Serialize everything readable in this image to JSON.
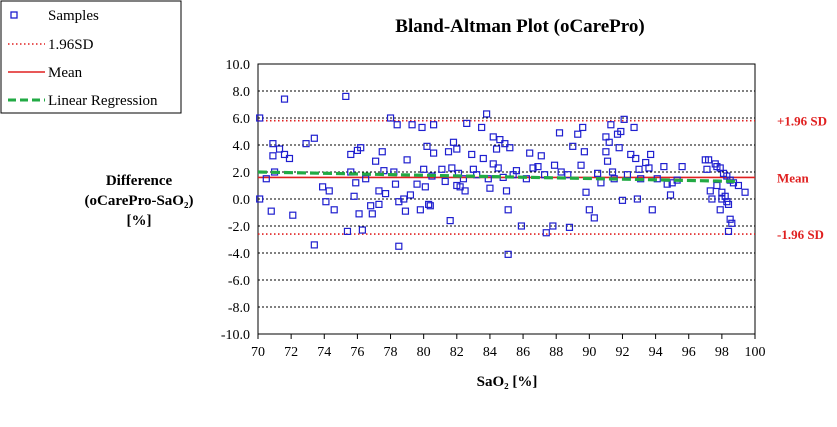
{
  "chart_data": {
    "type": "scatter",
    "title": "Bland-Altman Plot (oCarePro)",
    "xlabel": "SaO₂ [%]",
    "ylabel": [
      "Difference",
      "(oCarePro-SaO₂)",
      "[%]"
    ],
    "xlim": [
      70,
      100
    ],
    "ylim": [
      -10,
      10
    ],
    "x_ticks": [
      70,
      72,
      74,
      76,
      78,
      80,
      82,
      84,
      86,
      88,
      90,
      92,
      94,
      96,
      98,
      100
    ],
    "y_ticks": [
      10,
      8,
      6,
      4,
      2,
      0,
      -2,
      -4,
      -6,
      -8,
      -10
    ],
    "y_tick_labels": [
      "10.0",
      "8.0",
      "6.0",
      "4.0",
      "2.0",
      "0.0",
      "-2.0",
      "-4.0",
      "-6.0",
      "-8.0",
      "-10.0"
    ],
    "grid": true,
    "legend": {
      "position": "top-left",
      "entries": [
        "Samples",
        "1.96SD",
        "Mean",
        "Linear Regression"
      ]
    },
    "reference_lines": [
      {
        "name": "upper-limit",
        "label": "+1.96 SD",
        "y": 5.8,
        "style": "dotted",
        "color": "#e02020"
      },
      {
        "name": "mean",
        "label": "Mean",
        "y": 1.6,
        "style": "solid",
        "color": "#e02020"
      },
      {
        "name": "lower-limit",
        "label": "-1.96 SD",
        "y": -2.6,
        "style": "dotted",
        "color": "#e02020"
      }
    ],
    "regression": {
      "x": [
        70,
        99
      ],
      "y": [
        2.0,
        1.3
      ],
      "style": "dashed",
      "color": "#22aa44"
    },
    "series": [
      {
        "name": "Samples",
        "color": "#1f1fcf",
        "points": [
          [
            70.1,
            6.0
          ],
          [
            70.1,
            0.0
          ],
          [
            70.5,
            1.5
          ],
          [
            70.8,
            -0.9
          ],
          [
            70.9,
            4.1
          ],
          [
            70.9,
            3.2
          ],
          [
            71.0,
            2.0
          ],
          [
            71.3,
            3.7
          ],
          [
            71.6,
            7.4
          ],
          [
            71.6,
            3.3
          ],
          [
            71.9,
            3.0
          ],
          [
            72.1,
            -1.2
          ],
          [
            72.9,
            4.1
          ],
          [
            73.4,
            4.5
          ],
          [
            73.4,
            -3.4
          ],
          [
            73.9,
            0.9
          ],
          [
            74.1,
            -0.2
          ],
          [
            74.3,
            0.6
          ],
          [
            74.6,
            -0.8
          ],
          [
            75.3,
            7.6
          ],
          [
            75.4,
            -2.4
          ],
          [
            75.6,
            3.3
          ],
          [
            75.6,
            2.0
          ],
          [
            75.8,
            0.2
          ],
          [
            75.9,
            1.2
          ],
          [
            76.0,
            3.6
          ],
          [
            76.1,
            -1.1
          ],
          [
            76.2,
            3.8
          ],
          [
            76.3,
            -2.3
          ],
          [
            76.5,
            1.5
          ],
          [
            76.8,
            -0.5
          ],
          [
            76.9,
            -1.1
          ],
          [
            77.1,
            2.8
          ],
          [
            77.3,
            0.6
          ],
          [
            77.3,
            -0.4
          ],
          [
            77.5,
            3.5
          ],
          [
            77.6,
            2.1
          ],
          [
            77.7,
            0.4
          ],
          [
            78.0,
            6.0
          ],
          [
            78.2,
            2.0
          ],
          [
            78.3,
            1.1
          ],
          [
            78.4,
            5.5
          ],
          [
            78.5,
            -3.5
          ],
          [
            78.5,
            -0.2
          ],
          [
            78.8,
            0.0
          ],
          [
            78.9,
            -0.9
          ],
          [
            79.0,
            2.9
          ],
          [
            79.2,
            0.3
          ],
          [
            79.3,
            5.5
          ],
          [
            79.6,
            1.1
          ],
          [
            79.8,
            -0.8
          ],
          [
            79.9,
            5.3
          ],
          [
            80.0,
            2.2
          ],
          [
            80.1,
            0.9
          ],
          [
            80.2,
            3.9
          ],
          [
            80.3,
            -0.4
          ],
          [
            80.4,
            -0.5
          ],
          [
            80.5,
            1.7
          ],
          [
            80.6,
            3.4
          ],
          [
            80.6,
            5.5
          ],
          [
            81.1,
            2.2
          ],
          [
            81.3,
            1.3
          ],
          [
            81.5,
            3.5
          ],
          [
            81.6,
            -1.6
          ],
          [
            81.7,
            2.3
          ],
          [
            81.8,
            4.2
          ],
          [
            82.0,
            1.0
          ],
          [
            82.0,
            3.7
          ],
          [
            82.1,
            1.9
          ],
          [
            82.2,
            0.9
          ],
          [
            82.4,
            1.5
          ],
          [
            82.5,
            0.6
          ],
          [
            82.6,
            5.6
          ],
          [
            82.9,
            3.3
          ],
          [
            83.0,
            2.2
          ],
          [
            83.2,
            1.8
          ],
          [
            83.5,
            5.3
          ],
          [
            83.6,
            3.0
          ],
          [
            83.8,
            6.3
          ],
          [
            83.9,
            1.5
          ],
          [
            84.0,
            0.8
          ],
          [
            84.2,
            2.6
          ],
          [
            84.2,
            4.6
          ],
          [
            84.4,
            3.7
          ],
          [
            84.5,
            2.3
          ],
          [
            84.6,
            4.4
          ],
          [
            84.8,
            1.6
          ],
          [
            84.9,
            4.1
          ],
          [
            85.0,
            0.6
          ],
          [
            85.1,
            -0.8
          ],
          [
            85.1,
            -4.1
          ],
          [
            85.2,
            3.8
          ],
          [
            85.4,
            1.8
          ],
          [
            85.6,
            2.1
          ],
          [
            85.9,
            -2.0
          ],
          [
            86.2,
            1.5
          ],
          [
            86.4,
            3.4
          ],
          [
            86.6,
            2.3
          ],
          [
            86.9,
            2.4
          ],
          [
            87.1,
            3.2
          ],
          [
            87.3,
            1.8
          ],
          [
            87.4,
            -2.5
          ],
          [
            87.8,
            -2.0
          ],
          [
            87.9,
            2.5
          ],
          [
            88.2,
            4.9
          ],
          [
            88.3,
            2.0
          ],
          [
            88.7,
            1.8
          ],
          [
            88.8,
            -2.1
          ],
          [
            89.0,
            3.9
          ],
          [
            89.3,
            4.8
          ],
          [
            89.5,
            2.5
          ],
          [
            89.6,
            5.3
          ],
          [
            89.7,
            3.5
          ],
          [
            89.8,
            0.5
          ],
          [
            90.0,
            -0.8
          ],
          [
            90.3,
            -1.4
          ],
          [
            90.5,
            1.9
          ],
          [
            90.7,
            1.2
          ],
          [
            91.0,
            4.6
          ],
          [
            91.0,
            3.5
          ],
          [
            91.1,
            2.8
          ],
          [
            91.2,
            4.2
          ],
          [
            91.3,
            5.5
          ],
          [
            91.4,
            2.0
          ],
          [
            91.5,
            1.5
          ],
          [
            91.7,
            4.8
          ],
          [
            91.8,
            3.8
          ],
          [
            91.9,
            5.0
          ],
          [
            92.0,
            -0.1
          ],
          [
            92.1,
            5.9
          ],
          [
            92.3,
            1.8
          ],
          [
            92.5,
            3.3
          ],
          [
            92.7,
            5.3
          ],
          [
            92.8,
            3.0
          ],
          [
            92.9,
            0.0
          ],
          [
            93.0,
            2.2
          ],
          [
            93.1,
            1.5
          ],
          [
            93.4,
            2.7
          ],
          [
            93.6,
            2.3
          ],
          [
            93.7,
            3.3
          ],
          [
            93.8,
            -0.8
          ],
          [
            94.1,
            1.5
          ],
          [
            94.5,
            2.4
          ],
          [
            94.7,
            1.1
          ],
          [
            94.9,
            0.3
          ],
          [
            95.0,
            1.2
          ],
          [
            95.3,
            1.4
          ],
          [
            95.6,
            2.4
          ],
          [
            97.0,
            2.9
          ],
          [
            97.1,
            2.2
          ],
          [
            97.2,
            2.9
          ],
          [
            97.3,
            0.6
          ],
          [
            97.4,
            0.0
          ],
          [
            97.6,
            2.6
          ],
          [
            97.7,
            2.4
          ],
          [
            97.7,
            1.0
          ],
          [
            97.9,
            2.3
          ],
          [
            97.9,
            -0.8
          ],
          [
            98.0,
            0.5
          ],
          [
            98.0,
            0.0
          ],
          [
            98.1,
            1.9
          ],
          [
            98.2,
            0.2
          ],
          [
            98.3,
            1.7
          ],
          [
            98.3,
            -0.2
          ],
          [
            98.4,
            -0.4
          ],
          [
            98.4,
            -2.4
          ],
          [
            98.5,
            1.4
          ],
          [
            98.5,
            -1.5
          ],
          [
            98.6,
            -1.8
          ],
          [
            98.7,
            1.2
          ],
          [
            99.0,
            1.0
          ],
          [
            99.4,
            0.5
          ]
        ]
      }
    ]
  }
}
